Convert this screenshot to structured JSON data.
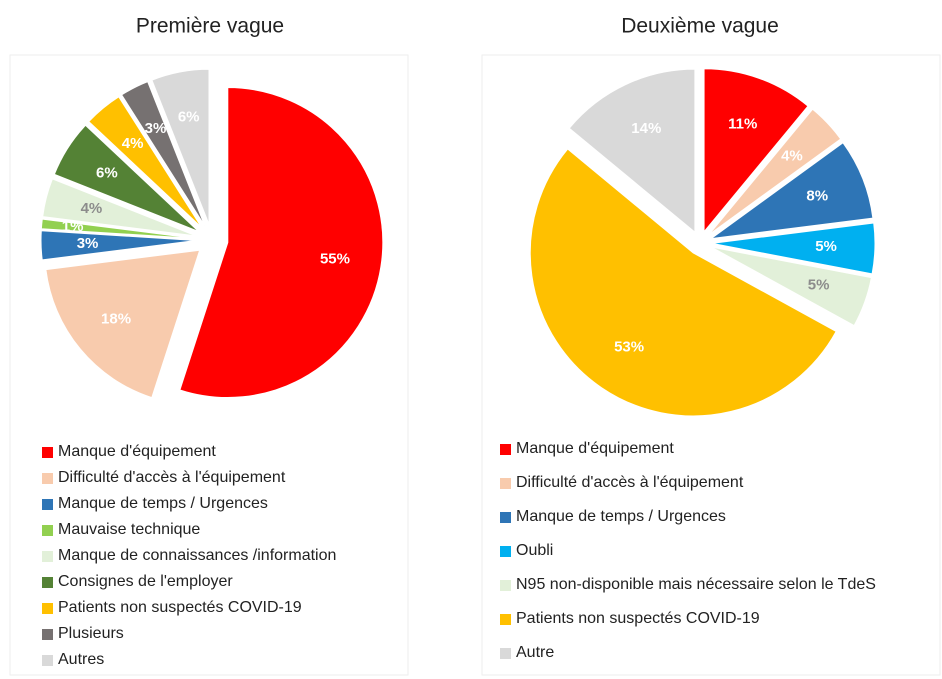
{
  "chart_data": [
    {
      "type": "pie",
      "title": "Première vague",
      "categories": [
        "Manque d'équipement",
        "Difficulté d'accès à l'équipement",
        "Manque de temps / Urgences",
        "Mauvaise technique",
        "Manque de connaissances /information",
        "Consignes de l'employer",
        "Patients non suspectés COVID-19",
        "Plusieurs",
        "Autres"
      ],
      "values": [
        55,
        18,
        3,
        1,
        4,
        6,
        4,
        3,
        6
      ],
      "value_labels": [
        "55%",
        "18%",
        "3%",
        "1%",
        "4%",
        "6%",
        "4%",
        "3%",
        "6%"
      ],
      "colors": [
        "#ff0000",
        "#f8cbad",
        "#2e75b6",
        "#92d050",
        "#e2f0d9",
        "#548235",
        "#ffc000",
        "#767171",
        "#d9d9d9"
      ]
    },
    {
      "type": "pie",
      "title": "Deuxième vague",
      "categories": [
        "Manque d'équipement",
        "Difficulté d'accès à l'équipement",
        "Manque de temps / Urgences",
        "Oubli",
        "N95 non-disponible mais nécessaire selon le TdeS",
        "Patients non suspectés COVID-19",
        "Autre"
      ],
      "values": [
        11,
        4,
        8,
        5,
        5,
        53,
        14
      ],
      "value_labels": [
        "11%",
        "4%",
        "8%",
        "5%",
        "5%",
        "53%",
        "14%"
      ],
      "colors": [
        "#ff0000",
        "#f8cbad",
        "#2e75b6",
        "#00b0f0",
        "#e2f0d9",
        "#ffc000",
        "#d9d9d9"
      ]
    }
  ]
}
